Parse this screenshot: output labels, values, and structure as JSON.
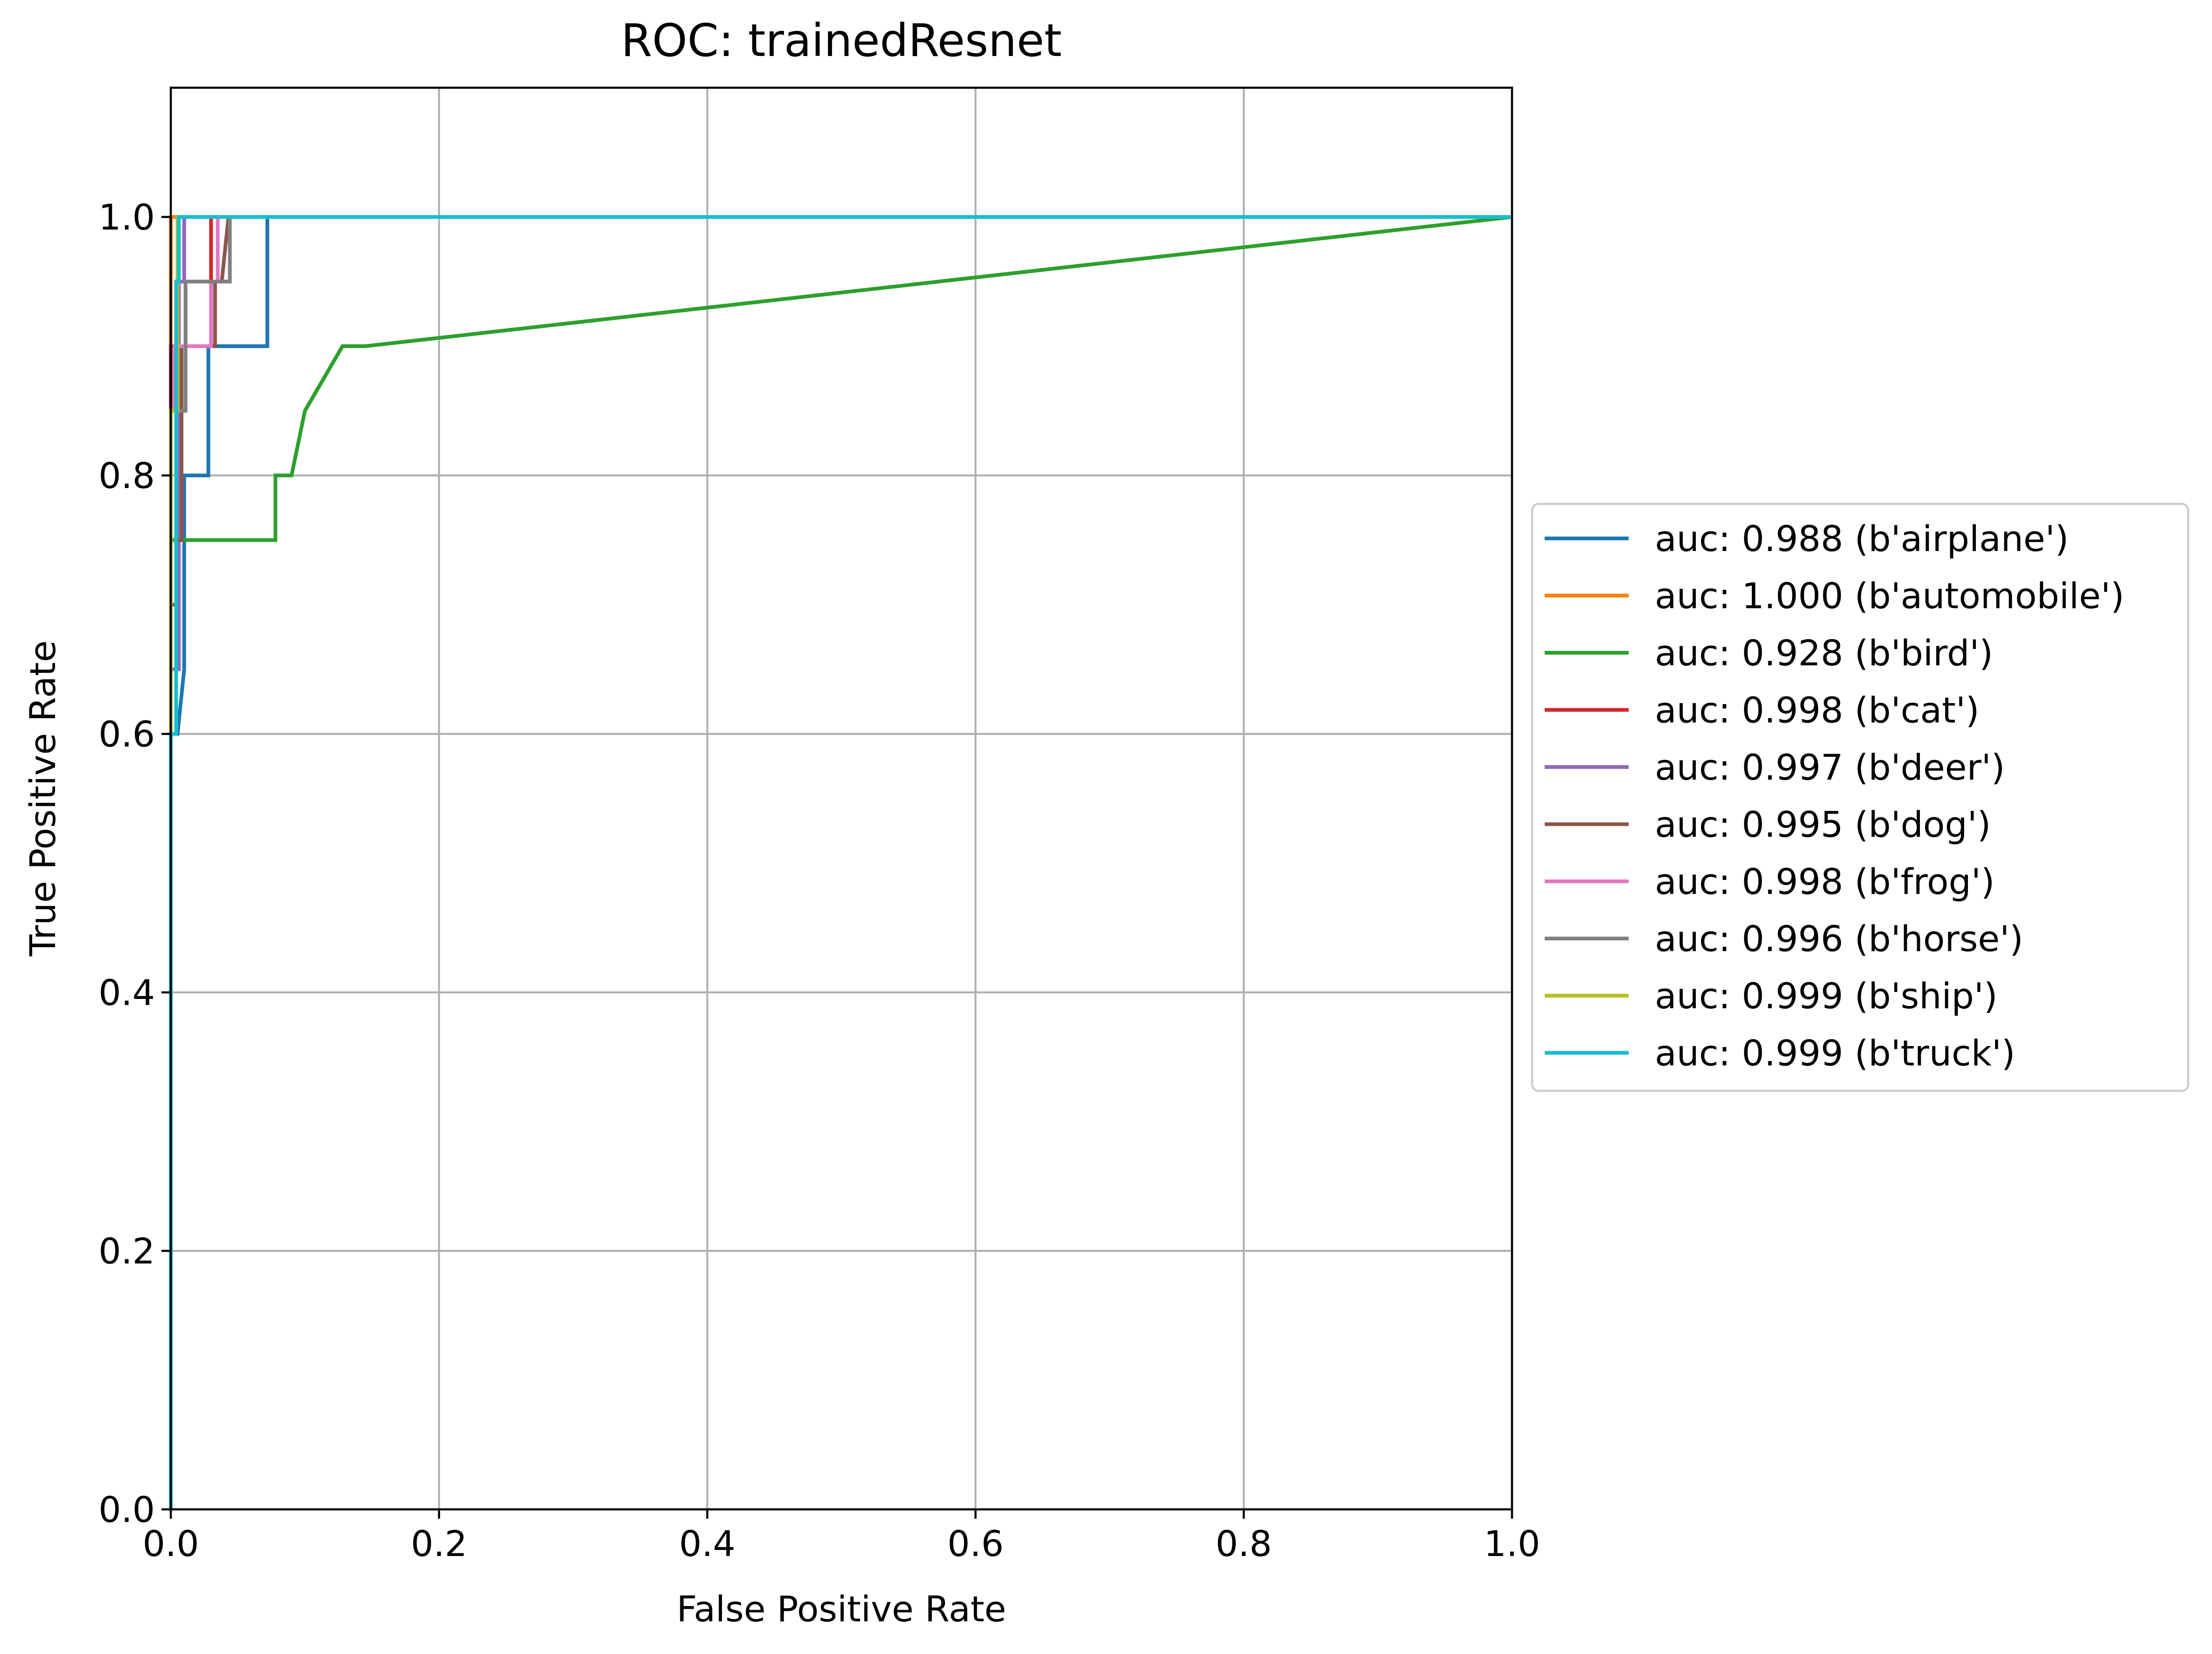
{
  "chart_data": {
    "type": "line",
    "title": "ROC: trainedResnet",
    "xlabel": "False Positive Rate",
    "ylabel": "True Positive Rate",
    "xlim": [
      0.0,
      1.0
    ],
    "ylim": [
      0.0,
      1.1
    ],
    "xticks": [
      "0.0",
      "0.2",
      "0.4",
      "0.6",
      "0.8",
      "1.0"
    ],
    "yticks": [
      "0.0",
      "0.2",
      "0.4",
      "0.6",
      "0.8",
      "1.0"
    ],
    "grid": true,
    "legend_position": "center-right, outside plot",
    "series": [
      {
        "name": "auc: 0.988 (b'airplane')",
        "color": "#1f77b4",
        "x": [
          0,
          0,
          0.005,
          0.005,
          0.01,
          0.01,
          0.012,
          0.012,
          0.028,
          0.028,
          0.065,
          0.065,
          0.072,
          0.072,
          1.0
        ],
        "y": [
          0,
          0.6,
          0.6,
          0.6,
          0.65,
          0.8,
          0.8,
          0.8,
          0.8,
          0.9,
          0.9,
          0.9,
          0.9,
          1.0,
          1.0
        ]
      },
      {
        "name": "auc: 1.000 (b'automobile')",
        "color": "#ff7f0e",
        "x": [
          0,
          0,
          1.0
        ],
        "y": [
          0,
          1.0,
          1.0
        ]
      },
      {
        "name": "auc: 0.928 (b'bird')",
        "color": "#2ca02c",
        "x": [
          0,
          0,
          0.005,
          0.078,
          0.078,
          0.09,
          0.1,
          0.128,
          0.145,
          1.0
        ],
        "y": [
          0,
          0.75,
          0.75,
          0.75,
          0.8,
          0.8,
          0.85,
          0.9,
          0.9,
          1.0
        ]
      },
      {
        "name": "auc: 0.998 (b'cat')",
        "color": "#d62728",
        "x": [
          0,
          0,
          0.004,
          0.004,
          0.025,
          0.025,
          0.03,
          0.03,
          1.0
        ],
        "y": [
          0,
          0.9,
          0.9,
          0.95,
          0.95,
          0.95,
          0.95,
          1.0,
          1.0
        ]
      },
      {
        "name": "auc: 0.997 (b'deer')",
        "color": "#9467bd",
        "x": [
          0,
          0,
          0.006,
          0.006,
          0.01,
          0.01,
          1.0
        ],
        "y": [
          0,
          0.65,
          0.65,
          0.95,
          0.95,
          1.0,
          1.0
        ]
      },
      {
        "name": "auc: 0.995 (b'dog')",
        "color": "#8c564b",
        "x": [
          0,
          0,
          0.004,
          0.004,
          0.008,
          0.008,
          0.033,
          0.033,
          0.038,
          0.043,
          1.0
        ],
        "y": [
          0,
          0.7,
          0.7,
          0.75,
          0.75,
          0.9,
          0.9,
          0.95,
          0.95,
          1.0,
          1.0
        ]
      },
      {
        "name": "auc: 0.998 (b'frog')",
        "color": "#e377c2",
        "x": [
          0,
          0,
          0.003,
          0.003,
          0.03,
          0.03,
          0.035,
          0.035,
          1.0
        ],
        "y": [
          0,
          0.85,
          0.85,
          0.9,
          0.9,
          0.95,
          0.95,
          1.0,
          1.0
        ]
      },
      {
        "name": "auc: 0.996 (b'horse')",
        "color": "#7f7f7f",
        "x": [
          0,
          0,
          0.005,
          0.005,
          0.011,
          0.011,
          0.038,
          0.038,
          0.044,
          0.044,
          1.0
        ],
        "y": [
          0,
          0.85,
          0.85,
          0.85,
          0.85,
          0.95,
          0.95,
          0.95,
          0.95,
          1.0,
          1.0
        ]
      },
      {
        "name": "auc: 0.999 (b'ship')",
        "color": "#bcbd22",
        "x": [
          0,
          0,
          0.005,
          0.005,
          0.011,
          0.011,
          1.0
        ],
        "y": [
          0,
          0.85,
          0.85,
          1.0,
          1.0,
          1.0,
          1.0
        ]
      },
      {
        "name": "auc: 0.999 (b'truck')",
        "color": "#17becf",
        "x": [
          0,
          0,
          0.004,
          0.004,
          0.006,
          0.006,
          1.0
        ],
        "y": [
          0,
          0.6,
          0.6,
          0.95,
          0.95,
          1.0,
          1.0
        ]
      }
    ]
  }
}
